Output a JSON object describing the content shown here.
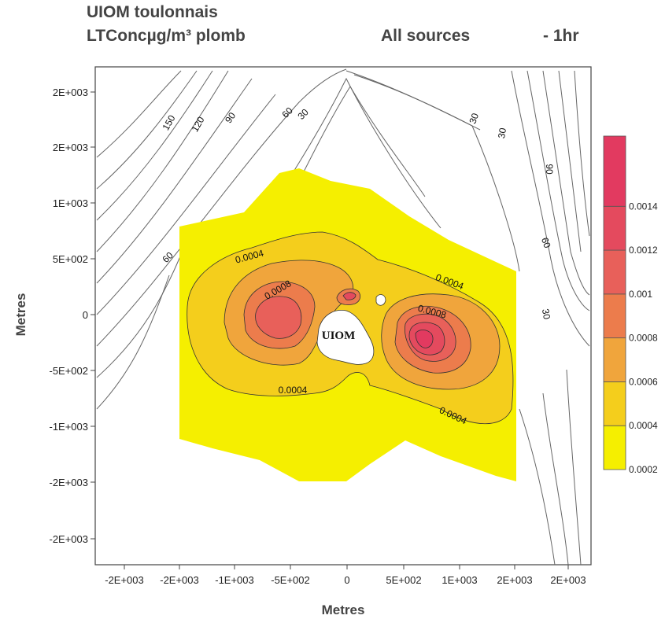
{
  "title_line1": "UIOM toulonnais",
  "title_line2": "LTConcµg/m³  plomb",
  "title_sources": "All sources",
  "title_period": "- 1hr",
  "chart_data": {
    "type": "contour",
    "xlabel": "Metres",
    "ylabel": "Metres",
    "x_ticks": [
      "-2E+003",
      "-2E+003",
      "-1E+003",
      "-5E+002",
      "0",
      "5E+002",
      "1E+003",
      "2E+003",
      "2E+003"
    ],
    "y_ticks": [
      "2E+003",
      "2E+003",
      "1E+003",
      "5E+002",
      "0",
      "-5E+002",
      "-1E+003",
      "-2E+003",
      "-2E+003"
    ],
    "source_label": "UIOM",
    "filled_levels": [
      0.0002,
      0.0004,
      0.0006,
      0.0008,
      0.001,
      0.0012,
      0.0014
    ],
    "colorbar_labels": [
      "0.0014",
      "0.0012",
      "0.001",
      "0.0008",
      "0.0006",
      "0.0004",
      "0.0002"
    ],
    "filled_contour_labels": [
      "0.0004",
      "0.0008",
      "0.0004",
      "0.0008",
      "0.0004",
      "0.0004"
    ],
    "terrain_contour_labels": [
      "150",
      "120",
      "90",
      "60",
      "30",
      "60",
      "30",
      "30",
      "90",
      "60",
      "30"
    ],
    "colors": {
      "band_0002": "#f5ef00",
      "band_0004": "#f4ce1c",
      "band_0006": "#f0a53c",
      "band_0008": "#ec7c4c",
      "band_001": "#e8605a",
      "band_0012": "#e44a5e",
      "band_0014": "#e23a60"
    }
  }
}
